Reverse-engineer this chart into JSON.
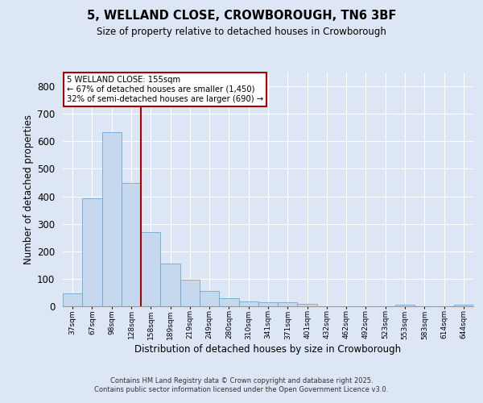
{
  "title1": "5, WELLAND CLOSE, CROWBOROUGH, TN6 3BF",
  "title2": "Size of property relative to detached houses in Crowborough",
  "xlabel": "Distribution of detached houses by size in Crowborough",
  "ylabel": "Number of detached properties",
  "categories": [
    "37sqm",
    "67sqm",
    "98sqm",
    "128sqm",
    "158sqm",
    "189sqm",
    "219sqm",
    "249sqm",
    "280sqm",
    "310sqm",
    "341sqm",
    "371sqm",
    "401sqm",
    "432sqm",
    "462sqm",
    "492sqm",
    "523sqm",
    "553sqm",
    "583sqm",
    "614sqm",
    "644sqm"
  ],
  "values": [
    47,
    393,
    632,
    447,
    270,
    155,
    97,
    55,
    28,
    18,
    15,
    15,
    8,
    0,
    0,
    0,
    0,
    7,
    0,
    0,
    7
  ],
  "bar_color": "#c5d8ee",
  "bar_edge_color": "#6aaad4",
  "background_color": "#dce6f5",
  "grid_color": "#ffffff",
  "vline_color": "#aa0000",
  "vline_index": 3.5,
  "annotation_title": "5 WELLAND CLOSE: 155sqm",
  "annotation_line1": "← 67% of detached houses are smaller (1,450)",
  "annotation_line2": "32% of semi-detached houses are larger (690) →",
  "annotation_box_bg": "#ffffff",
  "annotation_box_edge": "#aa0000",
  "ylim_max": 850,
  "yticks": [
    0,
    100,
    200,
    300,
    400,
    500,
    600,
    700,
    800
  ],
  "footer1": "Contains HM Land Registry data © Crown copyright and database right 2025.",
  "footer2": "Contains public sector information licensed under the Open Government Licence v3.0."
}
